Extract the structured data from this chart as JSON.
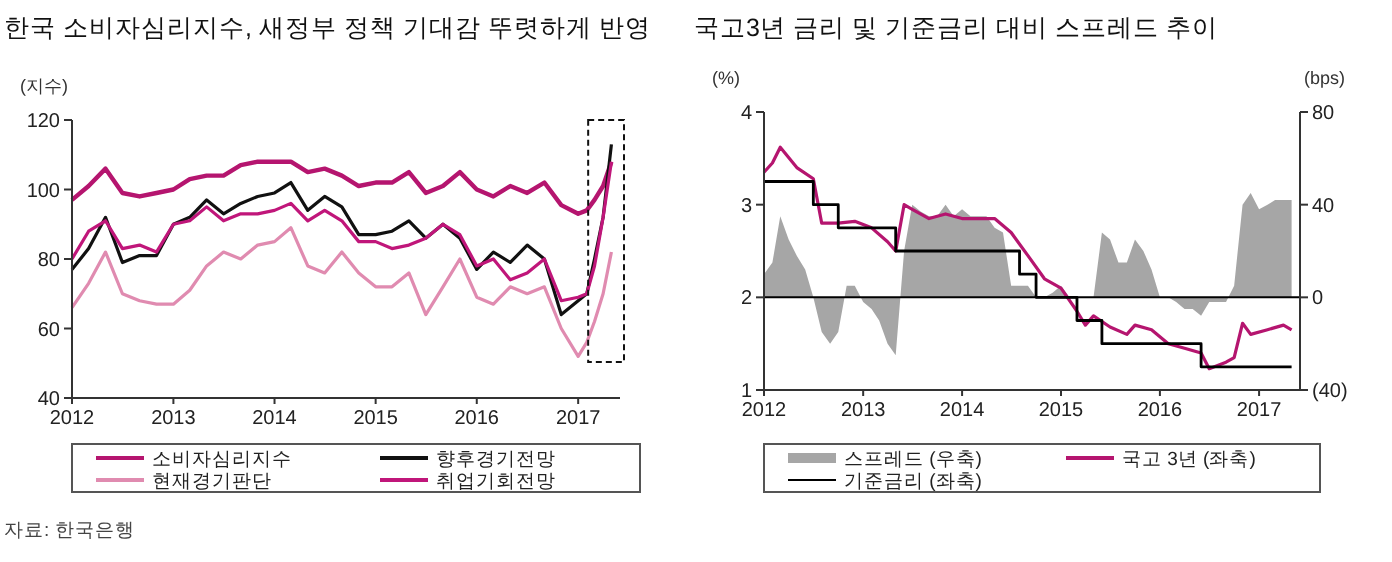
{
  "chart_data": [
    {
      "type": "line",
      "title": "한국 소비자심리지수, 새정부 정책 기대감 뚜렷하게 반영",
      "ylabel": "(지수)",
      "annotations": [
        "자료: 한국은행"
      ],
      "legend": "bottom",
      "grid": false,
      "x": [
        "2012-01",
        "2012-03",
        "2012-05",
        "2012-07",
        "2012-09",
        "2012-11",
        "2013-01",
        "2013-03",
        "2013-05",
        "2013-07",
        "2013-09",
        "2013-11",
        "2014-01",
        "2014-03",
        "2014-05",
        "2014-07",
        "2014-09",
        "2014-11",
        "2015-01",
        "2015-03",
        "2015-05",
        "2015-07",
        "2015-09",
        "2015-11",
        "2016-01",
        "2016-03",
        "2016-05",
        "2016-07",
        "2016-09",
        "2016-11",
        "2017-01",
        "2017-02",
        "2017-03",
        "2017-04",
        "2017-05"
      ],
      "xlim": [
        "2012-01",
        "2017-06"
      ],
      "xticks": [
        "2012",
        "2013",
        "2014",
        "2015",
        "2016",
        "2017"
      ],
      "ylim": [
        40,
        120
      ],
      "yticks": [
        40,
        60,
        80,
        100,
        120
      ],
      "series": [
        {
          "name": "소비자심리지수",
          "color": "#b5156f",
          "values": [
            97,
            101,
            106,
            99,
            98,
            99,
            100,
            103,
            104,
            104,
            107,
            108,
            108,
            108,
            105,
            106,
            104,
            101,
            102,
            102,
            105,
            99,
            101,
            105,
            100,
            98,
            101,
            99,
            102,
            95.5,
            93,
            94,
            97,
            101,
            108
          ]
        },
        {
          "name": "향후경기전망",
          "color": "#111111",
          "values": [
            77,
            83,
            92,
            79,
            81,
            81,
            90,
            92,
            97,
            93,
            96,
            98,
            99,
            102,
            94,
            98,
            95,
            87,
            87,
            88,
            91,
            86,
            90,
            86,
            77,
            82,
            79,
            84,
            80,
            64,
            68,
            70,
            80,
            92,
            113
          ]
        },
        {
          "name": "현재경기판단",
          "color": "#e08bb0",
          "values": [
            66,
            73,
            82,
            70,
            68,
            67,
            67,
            71,
            78,
            82,
            80,
            84,
            85,
            89,
            78,
            76,
            82,
            76,
            72,
            72,
            76,
            64,
            72,
            80,
            69,
            67,
            72,
            70,
            72,
            60,
            52,
            56,
            62,
            70,
            82
          ]
        },
        {
          "name": "취업기회전망",
          "color": "#c0167a",
          "values": [
            80,
            88,
            91,
            83,
            84,
            82,
            90,
            91,
            95,
            91,
            93,
            93,
            94,
            96,
            91,
            94,
            91,
            85,
            85,
            83,
            84,
            86,
            90,
            87,
            78,
            80,
            74,
            76,
            80,
            68,
            69,
            70,
            78,
            92,
            108
          ]
        }
      ]
    },
    {
      "type": "line",
      "title": "국고3년 금리 및 기준금리 대비 스프레드 추이",
      "ylabel": "(%)",
      "y2label": "(bps)",
      "legend": "bottom",
      "grid": false,
      "xlim": [
        "2012-01",
        "2017-06"
      ],
      "xticks": [
        "2012",
        "2013",
        "2014",
        "2015",
        "2016",
        "2017"
      ],
      "ylim": [
        1,
        4
      ],
      "yticks": [
        1,
        2,
        3,
        4
      ],
      "y2lim": [
        -40,
        80
      ],
      "y2ticks": [
        {
          "value": -40,
          "label": "(40)"
        },
        0,
        40,
        80
      ],
      "ref_lines": [
        {
          "axis": "y2",
          "value": 0,
          "color": "#000000"
        }
      ],
      "series": [
        {
          "name": "스프레드 (우축)",
          "type": "area",
          "axis": "y2",
          "color": "#a6a6a6",
          "x": [
            "2012-01",
            "2012-02",
            "2012-03",
            "2012-04",
            "2012-05",
            "2012-06",
            "2012-07",
            "2012-08",
            "2012-09",
            "2012-10",
            "2012-11",
            "2012-12",
            "2013-01",
            "2013-02",
            "2013-03",
            "2013-04",
            "2013-05",
            "2013-06",
            "2013-07",
            "2013-08",
            "2013-09",
            "2013-10",
            "2013-11",
            "2013-12",
            "2014-01",
            "2014-02",
            "2014-03",
            "2014-04",
            "2014-05",
            "2014-06",
            "2014-07",
            "2014-08",
            "2014-09",
            "2014-10",
            "2014-11",
            "2014-12",
            "2015-01",
            "2015-02",
            "2015-03",
            "2015-04",
            "2015-05",
            "2015-06",
            "2015-07",
            "2015-08",
            "2015-09",
            "2015-10",
            "2015-11",
            "2015-12",
            "2016-01",
            "2016-02",
            "2016-03",
            "2016-04",
            "2016-05",
            "2016-06",
            "2016-07",
            "2016-08",
            "2016-09",
            "2016-10",
            "2016-11",
            "2016-12",
            "2017-01",
            "2017-02",
            "2017-03",
            "2017-04",
            "2017-05"
          ],
          "values": [
            10,
            15,
            35,
            25,
            18,
            12,
            0,
            -15,
            -20,
            -15,
            5,
            5,
            -2,
            -5,
            -10,
            -20,
            -25,
            20,
            40,
            37,
            35,
            35,
            40,
            35,
            38,
            35,
            35,
            35,
            30,
            28,
            5,
            5,
            5,
            0,
            0,
            2,
            5,
            0,
            0,
            0,
            0,
            28,
            25,
            15,
            15,
            25,
            20,
            12,
            0,
            0,
            -2,
            -5,
            -5,
            -8,
            -2,
            -2,
            -2,
            5,
            40,
            45,
            38,
            40,
            42,
            42,
            42
          ]
        },
        {
          "name": "국고 3년 (좌축)",
          "color": "#b5156f",
          "x": [
            "2012-01",
            "2012-02",
            "2012-03",
            "2012-05",
            "2012-07",
            "2012-08",
            "2012-10",
            "2012-12",
            "2013-02",
            "2013-04",
            "2013-05",
            "2013-06",
            "2013-07",
            "2013-09",
            "2013-11",
            "2014-01",
            "2014-03",
            "2014-05",
            "2014-07",
            "2014-09",
            "2014-11",
            "2015-01",
            "2015-03",
            "2015-04",
            "2015-05",
            "2015-07",
            "2015-09",
            "2015-10",
            "2015-12",
            "2016-02",
            "2016-04",
            "2016-06",
            "2016-07",
            "2016-09",
            "2016-10",
            "2016-11",
            "2016-12",
            "2017-02",
            "2017-04",
            "2017-05"
          ],
          "values": [
            3.35,
            3.45,
            3.62,
            3.4,
            3.28,
            2.8,
            2.8,
            2.82,
            2.75,
            2.6,
            2.5,
            3.0,
            2.95,
            2.85,
            2.9,
            2.85,
            2.85,
            2.85,
            2.7,
            2.45,
            2.2,
            2.1,
            1.85,
            1.7,
            1.8,
            1.68,
            1.6,
            1.7,
            1.65,
            1.5,
            1.45,
            1.4,
            1.23,
            1.3,
            1.35,
            1.72,
            1.6,
            1.65,
            1.7,
            1.65
          ]
        },
        {
          "name": "기준금리 (좌축)",
          "type": "step",
          "color": "#000000",
          "x": [
            "2012-01",
            "2012-07",
            "2012-10",
            "2013-05",
            "2014-08",
            "2014-10",
            "2015-03",
            "2015-06",
            "2016-06",
            "2017-05"
          ],
          "values": [
            3.25,
            3.0,
            2.75,
            2.5,
            2.25,
            2.0,
            1.75,
            1.5,
            1.25,
            1.25
          ]
        }
      ]
    }
  ]
}
